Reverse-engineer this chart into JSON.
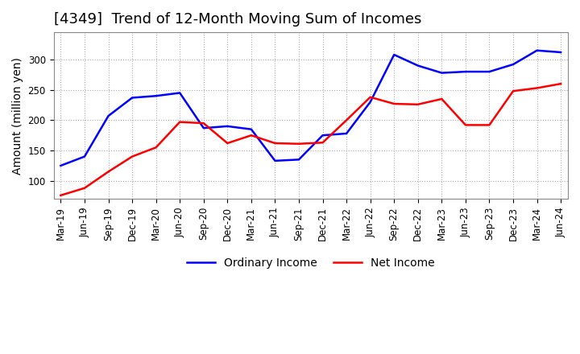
{
  "title": "[4349]  Trend of 12-Month Moving Sum of Incomes",
  "ylabel": "Amount (million yen)",
  "ylim": [
    70,
    345
  ],
  "yticks": [
    100,
    150,
    200,
    250,
    300
  ],
  "x_labels": [
    "Mar-19",
    "Jun-19",
    "Sep-19",
    "Dec-19",
    "Mar-20",
    "Jun-20",
    "Sep-20",
    "Dec-20",
    "Mar-21",
    "Jun-21",
    "Sep-21",
    "Dec-21",
    "Mar-22",
    "Jun-22",
    "Sep-22",
    "Dec-22",
    "Mar-23",
    "Jun-23",
    "Sep-23",
    "Dec-23",
    "Mar-24",
    "Jun-24"
  ],
  "ordinary_income": [
    125,
    140,
    207,
    237,
    240,
    245,
    187,
    190,
    185,
    133,
    135,
    175,
    178,
    230,
    308,
    290,
    278,
    280,
    280,
    292,
    315,
    312
  ],
  "net_income": [
    76,
    88,
    115,
    140,
    155,
    197,
    195,
    162,
    175,
    162,
    161,
    163,
    200,
    238,
    227,
    226,
    235,
    192,
    192,
    248,
    253,
    260
  ],
  "ordinary_color": "#0000FF",
  "net_color": "#FF0000",
  "grid_color": "#AAAAAA",
  "background_color": "#FFFFFF",
  "title_fontsize": 13,
  "label_fontsize": 10,
  "tick_fontsize": 8.5,
  "legend_fontsize": 10
}
